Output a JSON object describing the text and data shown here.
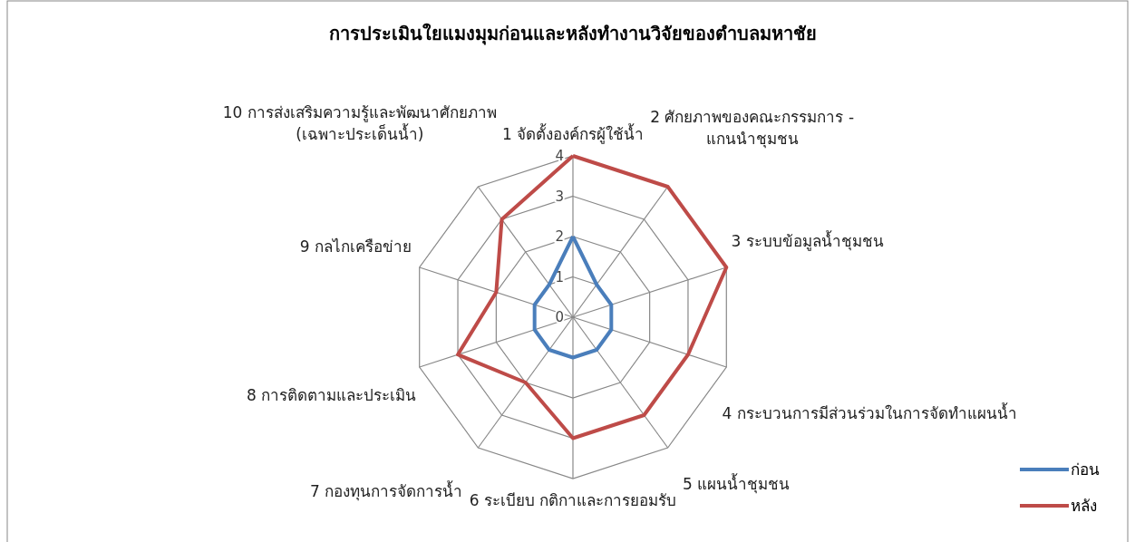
{
  "chart_data": {
    "type": "radar",
    "title": "การประเมินใยแมงมุมก่อนและหลังทำงานวิจัยของตำบลมหาชัย",
    "categories": [
      "1 จัดตั้งองค์กรผู้ใช้น้ำ",
      "2 ศักยภาพของคณะกรรมการ - แกนนำชุมชน",
      "3 ระบบข้อมูลน้ำชุมชน",
      "4 กระบวนการมีส่วนร่วมในการจัดทำแผนน้ำ",
      "5 แผนน้ำชุมชน",
      "6 ระเบียบ กติกาและการยอมรับ",
      "7 กองทุนการจัดการน้ำ",
      "8 การติดตามและประเมิน",
      "9 กลไกเครือข่าย",
      "10 การส่งเสริมความรู้และพัฒนาศักยภาพ (เฉพาะประเด็นน้ำ)"
    ],
    "series": [
      {
        "name": "ก่อน",
        "color": "#4a7ebb",
        "values": [
          2,
          1,
          1,
          1,
          1,
          1,
          1,
          1,
          1,
          1
        ]
      },
      {
        "name": "หลัง",
        "color": "#be4b48",
        "values": [
          4,
          4,
          4,
          3,
          3,
          3,
          2,
          3,
          2,
          3
        ]
      }
    ],
    "ylim": [
      0,
      4
    ],
    "yticks": [
      0,
      1,
      2,
      3,
      4
    ],
    "legend": "bottom right"
  }
}
